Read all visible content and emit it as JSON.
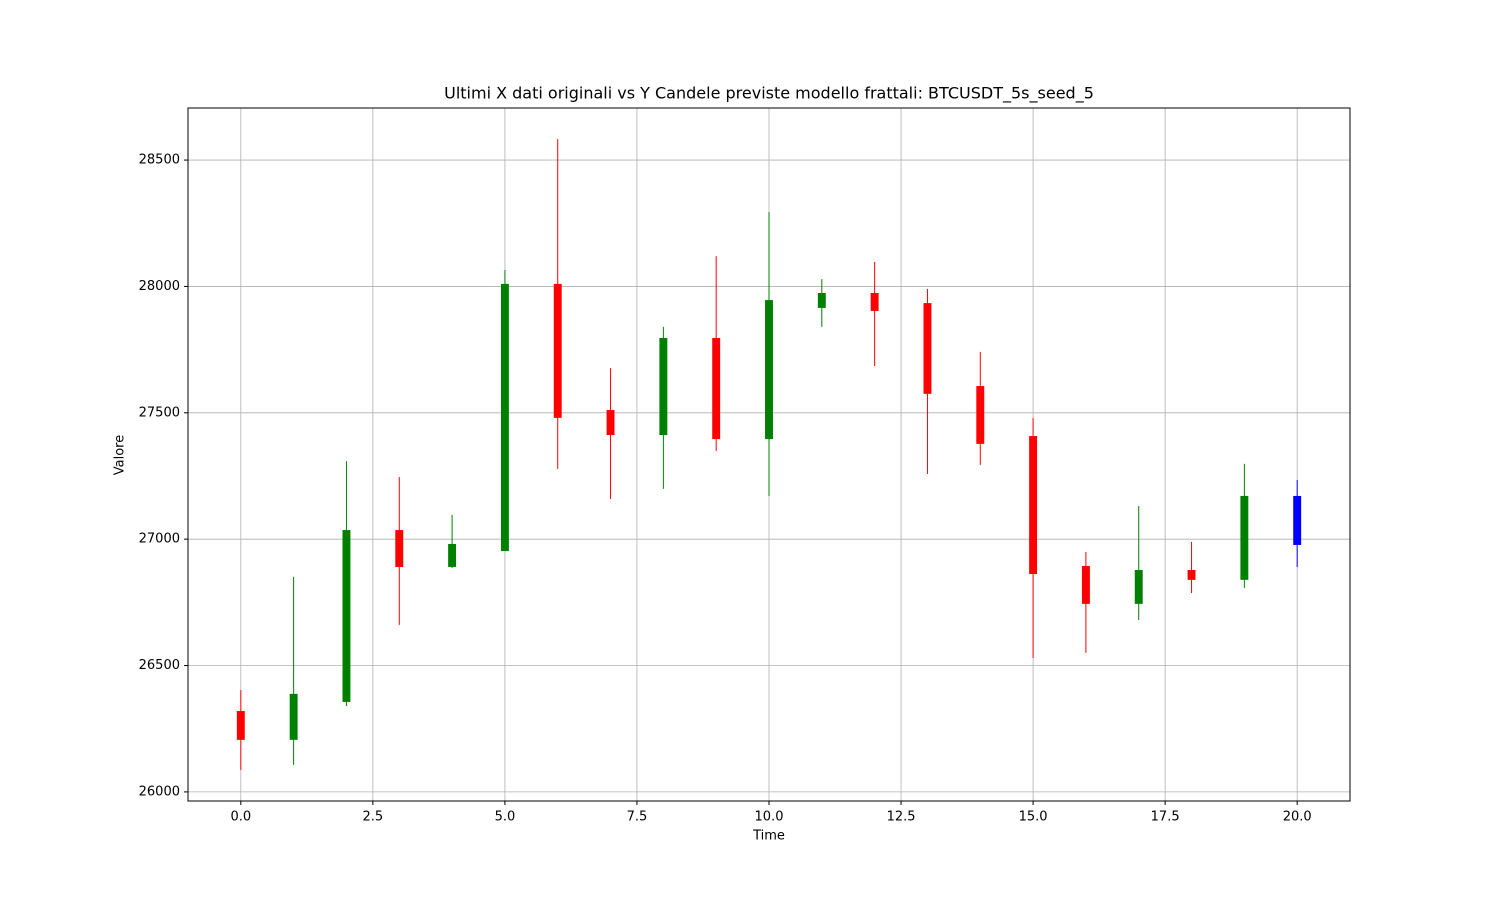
{
  "chart_data": {
    "type": "candlestick",
    "title": "Ultimi X dati originali vs Y Candele previste modello frattali: BTCUSDT_5s_seed_5",
    "x_label": "Time",
    "y_label": "Valore",
    "x": [
      0,
      1,
      2,
      3,
      4,
      5,
      6,
      7,
      8,
      9,
      10,
      11,
      12,
      13,
      14,
      15,
      16,
      17,
      18,
      19,
      20
    ],
    "open": [
      26320,
      26206,
      26356,
      27036,
      26890,
      26953,
      28010,
      27511,
      27412,
      27796,
      27396,
      27915,
      27974,
      27934,
      27606,
      27408,
      26894,
      26744,
      26878,
      26839,
      26977
    ],
    "high": [
      26403,
      26851,
      27309,
      27246,
      27096,
      28065,
      28583,
      27677,
      27840,
      28120,
      28294,
      28029,
      28097,
      27990,
      27741,
      27480,
      26949,
      27131,
      26989,
      27298,
      27234
    ],
    "low": [
      26087,
      26107,
      26340,
      26661,
      26886,
      26953,
      27278,
      27159,
      27199,
      27349,
      27171,
      27840,
      27685,
      27258,
      27294,
      26530,
      26550,
      26680,
      26787,
      26807,
      26890
    ],
    "close": [
      26206,
      26388,
      27036,
      26890,
      26981,
      28010,
      27480,
      27412,
      27796,
      27396,
      27946,
      27974,
      27903,
      27575,
      27377,
      26862,
      26744,
      26878,
      26839,
      27171,
      27171
    ],
    "colors": [
      "red",
      "green",
      "green",
      "red",
      "green",
      "green",
      "red",
      "red",
      "green",
      "red",
      "green",
      "green",
      "red",
      "red",
      "red",
      "red",
      "red",
      "green",
      "red",
      "green",
      "blue"
    ],
    "xlim": [
      -1,
      21
    ],
    "ylim": [
      25964,
      28706
    ],
    "xticks": [
      {
        "value": 0,
        "label": "0.0"
      },
      {
        "value": 2.5,
        "label": "2.5"
      },
      {
        "value": 5,
        "label": "5.0"
      },
      {
        "value": 7.5,
        "label": "7.5"
      },
      {
        "value": 10,
        "label": "10.0"
      },
      {
        "value": 12.5,
        "label": "12.5"
      },
      {
        "value": 15,
        "label": "15.0"
      },
      {
        "value": 17.5,
        "label": "17.5"
      },
      {
        "value": 20,
        "label": "20.0"
      }
    ],
    "yticks": [
      26000,
      26500,
      27000,
      27500,
      28000,
      28500
    ],
    "grid": true
  }
}
